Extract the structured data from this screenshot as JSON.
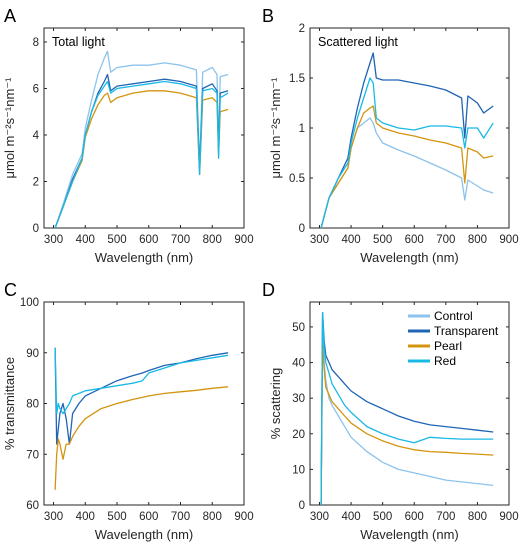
{
  "series_meta": [
    {
      "name": "Control",
      "color": "#8CC3EC"
    },
    {
      "name": "Transparent",
      "color": "#1F64B5"
    },
    {
      "name": "Pearl",
      "color": "#D4940F"
    },
    {
      "name": "Red",
      "color": "#19B9E6"
    }
  ],
  "chart_data": [
    {
      "panel": "A",
      "type": "line",
      "title": "Total light",
      "xlabel": "Wavelength (nm)",
      "ylabel": "μmol m⁻²s⁻¹nm⁻¹",
      "xlim": [
        270,
        900
      ],
      "ylim": [
        0,
        8.6
      ],
      "xticks": [
        300,
        400,
        500,
        600,
        700,
        800,
        900
      ],
      "yticks": [
        0,
        2,
        4,
        6,
        8
      ],
      "x": [
        305,
        330,
        360,
        390,
        400,
        420,
        440,
        460,
        470,
        480,
        500,
        550,
        600,
        650,
        700,
        750,
        760,
        770,
        800,
        815,
        820,
        825,
        850
      ],
      "series": [
        {
          "name": "Control",
          "values": [
            0,
            1.0,
            2.3,
            3.2,
            4.3,
            5.5,
            6.6,
            7.3,
            7.6,
            6.7,
            6.9,
            7.0,
            7.0,
            7.1,
            7.0,
            6.8,
            2.7,
            6.7,
            6.9,
            6.6,
            3.5,
            6.5,
            6.6
          ]
        },
        {
          "name": "Transparent",
          "values": [
            0,
            0.9,
            2.1,
            3.0,
            4.0,
            5.0,
            5.8,
            6.3,
            6.6,
            5.9,
            6.1,
            6.2,
            6.3,
            6.4,
            6.3,
            6.1,
            2.5,
            6.0,
            6.2,
            5.9,
            3.3,
            5.8,
            5.9
          ]
        },
        {
          "name": "Pearl",
          "values": [
            0,
            0.9,
            2.0,
            2.9,
            3.9,
            4.7,
            5.3,
            5.7,
            5.8,
            5.4,
            5.6,
            5.8,
            5.9,
            5.9,
            5.8,
            5.6,
            2.3,
            5.5,
            5.6,
            5.4,
            3.1,
            5.0,
            5.1
          ]
        },
        {
          "name": "Red",
          "values": [
            0,
            0.9,
            2.0,
            3.0,
            4.0,
            5.0,
            5.7,
            6.1,
            6.3,
            5.8,
            6.0,
            6.1,
            6.2,
            6.3,
            6.2,
            6.0,
            2.3,
            5.9,
            6.0,
            5.8,
            3.0,
            5.6,
            5.8
          ]
        }
      ]
    },
    {
      "panel": "B",
      "type": "line",
      "title": "Scattered light",
      "xlabel": "Wavelength (nm)",
      "ylabel": "μmol m⁻²s⁻¹nm⁻¹",
      "xlim": [
        270,
        900
      ],
      "ylim": [
        0,
        2
      ],
      "xticks": [
        300,
        400,
        500,
        600,
        700,
        800,
        900
      ],
      "yticks": [
        0,
        0.5,
        1,
        1.5,
        2
      ],
      "x": [
        305,
        330,
        360,
        390,
        400,
        420,
        440,
        460,
        470,
        480,
        500,
        550,
        600,
        650,
        700,
        750,
        760,
        770,
        800,
        820,
        850
      ],
      "series": [
        {
          "name": "Control",
          "values": [
            0,
            0.3,
            0.45,
            0.6,
            0.8,
            1.0,
            1.05,
            1.1,
            1.05,
            0.95,
            0.85,
            0.78,
            0.72,
            0.65,
            0.58,
            0.5,
            0.28,
            0.48,
            0.42,
            0.38,
            0.35
          ]
        },
        {
          "name": "Transparent",
          "values": [
            0,
            0.3,
            0.5,
            0.7,
            0.9,
            1.2,
            1.45,
            1.65,
            1.75,
            1.5,
            1.48,
            1.48,
            1.45,
            1.42,
            1.38,
            1.3,
            0.9,
            1.32,
            1.25,
            1.15,
            1.22
          ]
        },
        {
          "name": "Pearl",
          "values": [
            0,
            0.3,
            0.45,
            0.6,
            0.8,
            1.0,
            1.15,
            1.2,
            1.22,
            1.05,
            1.0,
            0.95,
            0.92,
            0.88,
            0.85,
            0.8,
            0.45,
            0.8,
            0.76,
            0.7,
            0.72
          ]
        },
        {
          "name": "Red",
          "values": [
            0,
            0.3,
            0.5,
            0.65,
            0.85,
            1.1,
            1.3,
            1.5,
            1.45,
            1.1,
            1.05,
            1.0,
            0.98,
            1.02,
            1.02,
            1.0,
            0.8,
            1.0,
            1.0,
            0.9,
            1.05
          ]
        }
      ]
    },
    {
      "panel": "C",
      "type": "line",
      "xlabel": "Wavelength (nm)",
      "ylabel": "% transmittance",
      "xlim": [
        270,
        900
      ],
      "ylim": [
        60,
        100
      ],
      "xticks": [
        300,
        400,
        500,
        600,
        700,
        800,
        900
      ],
      "yticks": [
        60,
        70,
        80,
        90,
        100
      ],
      "x": [
        305,
        310,
        315,
        320,
        330,
        340,
        350,
        360,
        380,
        400,
        450,
        500,
        550,
        580,
        600,
        650,
        700,
        750,
        800,
        850
      ],
      "series": [
        {
          "name": "Transparent",
          "values": [
            91,
            72,
            75,
            78,
            80,
            77,
            72,
            78,
            80,
            81.5,
            83,
            84.5,
            85.5,
            86,
            86.5,
            87.5,
            88,
            88.8,
            89.5,
            90
          ]
        },
        {
          "name": "Pearl",
          "values": [
            63,
            70,
            73,
            72,
            69,
            72,
            72,
            73.5,
            75.5,
            77,
            79,
            80,
            80.8,
            81.2,
            81.5,
            82,
            82.3,
            82.6,
            83,
            83.3
          ]
        },
        {
          "name": "Red",
          "values": [
            91,
            78,
            80,
            79,
            78,
            79,
            80,
            81.5,
            82,
            82.5,
            83,
            83.5,
            84,
            84.5,
            86,
            87,
            88,
            88.5,
            89,
            89.5
          ]
        }
      ]
    },
    {
      "panel": "D",
      "type": "line",
      "xlabel": "Wavelength (nm)",
      "ylabel": "% scattering",
      "xlim": [
        270,
        900
      ],
      "ylim": [
        0,
        57
      ],
      "xticks": [
        300,
        400,
        500,
        600,
        700,
        800,
        900
      ],
      "yticks": [
        0,
        10,
        20,
        30,
        40,
        50
      ],
      "legend": "top-right",
      "x": [
        305,
        310,
        315,
        320,
        330,
        340,
        360,
        380,
        400,
        450,
        500,
        550,
        600,
        650,
        700,
        750,
        800,
        850
      ],
      "series": [
        {
          "name": "Control",
          "values": [
            0,
            54,
            40,
            35,
            30,
            28,
            25,
            22,
            19,
            15,
            12,
            10,
            9,
            8,
            7,
            6.5,
            6,
            5.5
          ]
        },
        {
          "name": "Transparent",
          "values": [
            0,
            54,
            46,
            42,
            40,
            38,
            36,
            34,
            32,
            29,
            27,
            25,
            23.5,
            22.5,
            22,
            21.5,
            21,
            20.5
          ]
        },
        {
          "name": "Pearl",
          "values": [
            0,
            45,
            38,
            33,
            31,
            29,
            27,
            25,
            23,
            20,
            18,
            16.5,
            15.5,
            15,
            14.8,
            14.5,
            14.3,
            14
          ]
        },
        {
          "name": "Red",
          "values": [
            0,
            54,
            44,
            40,
            37,
            34,
            31,
            28,
            26,
            22,
            20,
            18.5,
            17.5,
            19,
            18.7,
            18.5,
            18.5,
            18.5
          ]
        }
      ]
    }
  ]
}
